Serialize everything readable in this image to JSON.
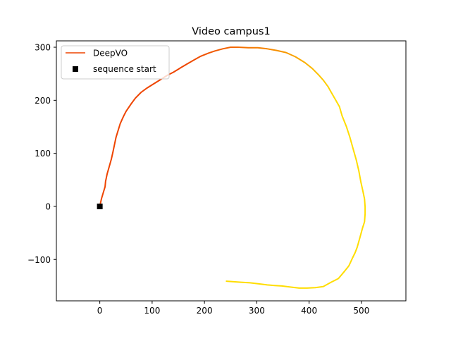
{
  "chart_data": {
    "type": "line",
    "title": "Video campus1",
    "xlabel": "",
    "ylabel": "",
    "xlim": [
      -83,
      585
    ],
    "ylim": [
      -178,
      312
    ],
    "xticks": [
      0,
      100,
      200,
      300,
      400,
      500
    ],
    "xtick_labels": [
      "0",
      "100",
      "200",
      "300",
      "400",
      "500"
    ],
    "yticks": [
      -100,
      0,
      100,
      200,
      300
    ],
    "ytick_labels": [
      "−100",
      "0",
      "100",
      "200",
      "300"
    ],
    "grid": false,
    "legend": {
      "placement": "upper-left",
      "entries": [
        "DeepVO",
        "sequence start"
      ]
    },
    "series": [
      {
        "name": "DeepVO",
        "style": "line",
        "color_start": "#ee4400",
        "color_end": "#ffdd00",
        "x": [
          0,
          3,
          7,
          10,
          11,
          14,
          18,
          22,
          25,
          28,
          31,
          34,
          39,
          45,
          50,
          59,
          68,
          79,
          90,
          103,
          116,
          129,
          141,
          154,
          166,
          180,
          193,
          208,
          220,
          235,
          250,
          264,
          284,
          302,
          320,
          338,
          356,
          374,
          392,
          406,
          418,
          427,
          436,
          444,
          451,
          458,
          463,
          471,
          478,
          484,
          490,
          495,
          499,
          503,
          506,
          507,
          507,
          506,
          502,
          497,
          492,
          488,
          483,
          476,
          468,
          456,
          442,
          427,
          412,
          396,
          381,
          364,
          348,
          334,
          320,
          304,
          287,
          270,
          256,
          242
        ],
        "y": [
          0,
          14,
          27,
          37,
          47,
          61,
          75,
          89,
          102,
          116,
          130,
          140,
          156,
          169,
          179,
          192,
          204,
          215,
          223,
          231,
          239,
          247,
          253,
          261,
          268,
          276,
          283,
          289,
          293,
          297,
          300,
          300,
          299,
          299,
          297,
          294,
          290,
          282,
          271,
          260,
          248,
          238,
          226,
          212,
          200,
          188,
          171,
          151,
          130,
          109,
          88,
          67,
          46,
          28,
          14,
          -1,
          -14,
          -29,
          -41,
          -59,
          -77,
          -87,
          -97,
          -112,
          -122,
          -136,
          -143,
          -151,
          -153,
          -154,
          -154,
          -152,
          -150,
          -149,
          -148,
          -146,
          -144,
          -143,
          -142,
          -141
        ]
      },
      {
        "name": "sequence start",
        "style": "marker",
        "marker": "square",
        "color": "#000000",
        "x": [
          0
        ],
        "y": [
          0
        ]
      }
    ]
  }
}
